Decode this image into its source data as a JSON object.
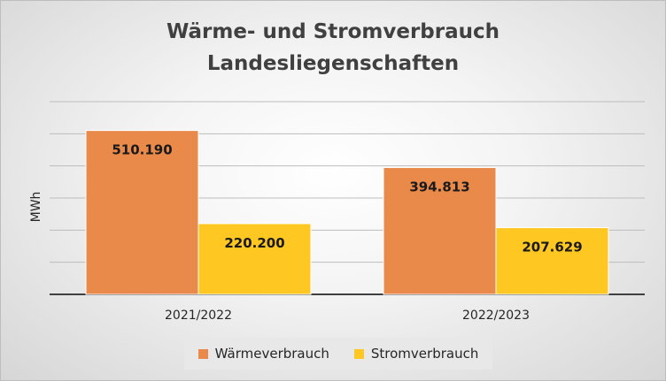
{
  "chart_data": {
    "type": "bar",
    "title": "Wärme- und Stromverbrauch",
    "subtitle": "Landesliegenschaften",
    "ylabel": "MWh",
    "xlabel": "",
    "categories": [
      "2021/2022",
      "2022/2023"
    ],
    "series": [
      {
        "name": "Wärmeverbrauch",
        "values": [
          510190,
          394813
        ],
        "labels": [
          "510.190",
          "394.813"
        ],
        "color": "#E9894A"
      },
      {
        "name": "Stromverbrauch",
        "values": [
          220200,
          207629
        ],
        "labels": [
          "220.200",
          "207.629"
        ],
        "color": "#FFC722"
      }
    ],
    "ylim": [
      0,
      600000
    ],
    "grid": true,
    "legend": "bottom"
  }
}
